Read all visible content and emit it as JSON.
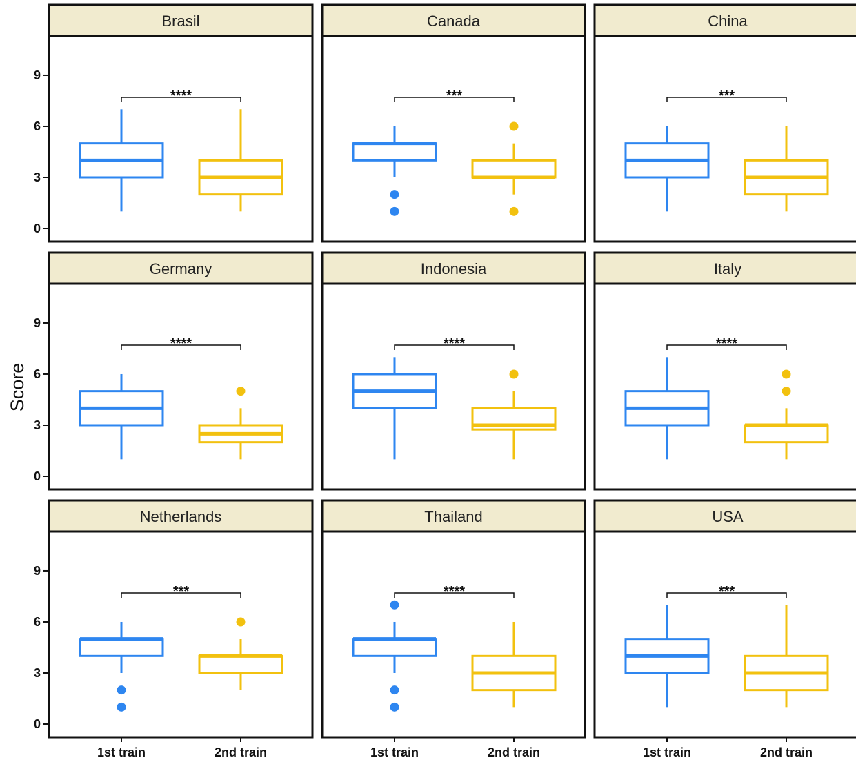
{
  "chart_data": {
    "type": "boxplot",
    "layout": "facet-grid-3x3",
    "ylabel": "Score",
    "ylim": [
      0,
      10
    ],
    "yticks": [
      0,
      3,
      6,
      9
    ],
    "categories": [
      "1st train",
      "2nd train"
    ],
    "colors": {
      "1st train": "#2E86F0",
      "2nd train": "#F2C10F"
    },
    "strip_color": "#F1EBCF",
    "panels": [
      {
        "name": "Brasil",
        "significance": "****",
        "boxes": [
          {
            "q1": 3,
            "median": 4,
            "q3": 5,
            "whisker_low": 1,
            "whisker_high": 7,
            "outliers": []
          },
          {
            "q1": 2,
            "median": 3,
            "q3": 4,
            "whisker_low": 1,
            "whisker_high": 7,
            "outliers": []
          }
        ]
      },
      {
        "name": "Canada",
        "significance": "***",
        "boxes": [
          {
            "q1": 4,
            "median": 5,
            "q3": 5,
            "whisker_low": 3,
            "whisker_high": 6,
            "outliers": [
              1,
              2
            ]
          },
          {
            "q1": 3,
            "median": 3,
            "q3": 4,
            "whisker_low": 2,
            "whisker_high": 5,
            "outliers": [
              1,
              6
            ]
          }
        ]
      },
      {
        "name": "China",
        "significance": "***",
        "boxes": [
          {
            "q1": 3,
            "median": 4,
            "q3": 5,
            "whisker_low": 1,
            "whisker_high": 6,
            "outliers": []
          },
          {
            "q1": 2,
            "median": 3,
            "q3": 4,
            "whisker_low": 1,
            "whisker_high": 6,
            "outliers": []
          }
        ]
      },
      {
        "name": "Germany",
        "significance": "****",
        "boxes": [
          {
            "q1": 3,
            "median": 4,
            "q3": 5,
            "whisker_low": 1,
            "whisker_high": 6,
            "outliers": []
          },
          {
            "q1": 2,
            "median": 2.5,
            "q3": 3,
            "whisker_low": 1,
            "whisker_high": 4,
            "outliers": [
              5
            ]
          }
        ]
      },
      {
        "name": "Indonesia",
        "significance": "****",
        "boxes": [
          {
            "q1": 4,
            "median": 5,
            "q3": 6,
            "whisker_low": 1,
            "whisker_high": 7,
            "outliers": []
          },
          {
            "q1": 2.75,
            "median": 3,
            "q3": 4,
            "whisker_low": 1,
            "whisker_high": 5,
            "outliers": [
              6
            ]
          }
        ]
      },
      {
        "name": "Italy",
        "significance": "****",
        "boxes": [
          {
            "q1": 3,
            "median": 4,
            "q3": 5,
            "whisker_low": 1,
            "whisker_high": 7,
            "outliers": []
          },
          {
            "q1": 2,
            "median": 3,
            "q3": 3,
            "whisker_low": 1,
            "whisker_high": 4,
            "outliers": [
              5,
              6
            ]
          }
        ]
      },
      {
        "name": "Netherlands",
        "significance": "***",
        "boxes": [
          {
            "q1": 4,
            "median": 5,
            "q3": 5,
            "whisker_low": 3,
            "whisker_high": 6,
            "outliers": [
              1,
              2
            ]
          },
          {
            "q1": 3,
            "median": 4,
            "q3": 4,
            "whisker_low": 2,
            "whisker_high": 5,
            "outliers": [
              6
            ]
          }
        ]
      },
      {
        "name": "Thailand",
        "significance": "****",
        "boxes": [
          {
            "q1": 4,
            "median": 5,
            "q3": 5,
            "whisker_low": 3,
            "whisker_high": 6,
            "outliers": [
              1,
              2,
              7
            ]
          },
          {
            "q1": 2,
            "median": 3,
            "q3": 4,
            "whisker_low": 1,
            "whisker_high": 6,
            "outliers": []
          }
        ]
      },
      {
        "name": "USA",
        "significance": "***",
        "boxes": [
          {
            "q1": 3,
            "median": 4,
            "q3": 5,
            "whisker_low": 1,
            "whisker_high": 7,
            "outliers": []
          },
          {
            "q1": 2,
            "median": 3,
            "q3": 4,
            "whisker_low": 1,
            "whisker_high": 7,
            "outliers": []
          }
        ]
      }
    ]
  }
}
